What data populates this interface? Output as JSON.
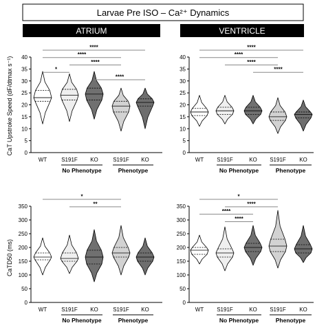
{
  "title": "Larvae Pre ISO – Ca²⁺ Dynamics",
  "columns": [
    "ATRIUM",
    "VENTRICLE"
  ],
  "group_labels": [
    "No Phenotype",
    "Phenotype"
  ],
  "colors": {
    "WT": "#ffffff",
    "S191F_no": "#efefef",
    "KO_no": "#707070",
    "S191F_ph": "#d2d2d2",
    "KO_ph": "#6e6e6e",
    "header_bg": "#000000",
    "header_text": "#ffffff"
  },
  "row_labels": {
    "top": "CaT Upstroke Speed (dF/dtmax s⁻¹)",
    "bottom": "CaTD50 (ms)"
  },
  "chart_data": [
    {
      "type": "violin",
      "panel": "atrium-upstroke",
      "categories": [
        "WT",
        "S191F",
        "KO",
        "S191F",
        "KO"
      ],
      "groups": [
        "",
        "No Phenotype",
        "No Phenotype",
        "Phenotype",
        "Phenotype"
      ],
      "ylim": [
        0,
        40
      ],
      "yticks": [
        0,
        5,
        10,
        15,
        20,
        25,
        30,
        35,
        40
      ],
      "violins": [
        {
          "min": 12,
          "max": 34,
          "q1": 21.5,
          "median": 23,
          "q3": 26
        },
        {
          "min": 13,
          "max": 33,
          "q1": 22,
          "median": 24,
          "q3": 26.5
        },
        {
          "min": 14,
          "max": 34,
          "q1": 22,
          "median": 24.5,
          "q3": 27
        },
        {
          "min": 9,
          "max": 27,
          "q1": 17,
          "median": 19.5,
          "q3": 21.5
        },
        {
          "min": 10,
          "max": 27,
          "q1": 19.5,
          "median": 21,
          "q3": 22.5
        }
      ],
      "significance": [
        {
          "a": 0,
          "b": 4,
          "label": "****"
        },
        {
          "a": 0,
          "b": 3,
          "label": "****"
        },
        {
          "a": 1,
          "b": 3,
          "label": "****"
        },
        {
          "a": 0,
          "b": 1,
          "label": "*"
        },
        {
          "a": 2,
          "b": 4,
          "label": "****"
        }
      ]
    },
    {
      "type": "violin",
      "panel": "ventricle-upstroke",
      "categories": [
        "WT",
        "S191F",
        "KO",
        "S191F",
        "KO"
      ],
      "groups": [
        "",
        "No Phenotype",
        "No Phenotype",
        "Phenotype",
        "Phenotype"
      ],
      "ylim": [
        0,
        40
      ],
      "yticks": [
        0,
        5,
        10,
        15,
        20,
        25,
        30,
        35,
        40
      ],
      "violins": [
        {
          "min": 11,
          "max": 24,
          "q1": 15.5,
          "median": 17,
          "q3": 18.5
        },
        {
          "min": 12,
          "max": 24,
          "q1": 16,
          "median": 17.5,
          "q3": 19
        },
        {
          "min": 12,
          "max": 24,
          "q1": 16,
          "median": 17.5,
          "q3": 19
        },
        {
          "min": 8,
          "max": 23,
          "q1": 13.5,
          "median": 15,
          "q3": 17
        },
        {
          "min": 9,
          "max": 22,
          "q1": 14.5,
          "median": 16,
          "q3": 17
        }
      ],
      "significance": [
        {
          "a": 0,
          "b": 4,
          "label": "****"
        },
        {
          "a": 0,
          "b": 3,
          "label": "****"
        },
        {
          "a": 1,
          "b": 3,
          "label": "****"
        },
        {
          "a": 2,
          "b": 4,
          "label": "****"
        }
      ]
    },
    {
      "type": "violin",
      "panel": "atrium-catd50",
      "categories": [
        "WT",
        "S191F",
        "KO",
        "S191F",
        "KO"
      ],
      "groups": [
        "",
        "No Phenotype",
        "No Phenotype",
        "Phenotype",
        "Phenotype"
      ],
      "ylim": [
        0,
        350
      ],
      "yticks": [
        0,
        50,
        100,
        150,
        200,
        250,
        300,
        350
      ],
      "violins": [
        {
          "min": 100,
          "max": 235,
          "q1": 155,
          "median": 165,
          "q3": 180
        },
        {
          "min": 105,
          "max": 245,
          "q1": 150,
          "median": 160,
          "q3": 180
        },
        {
          "min": 75,
          "max": 265,
          "q1": 140,
          "median": 165,
          "q3": 190
        },
        {
          "min": 100,
          "max": 280,
          "q1": 165,
          "median": 180,
          "q3": 200
        },
        {
          "min": 100,
          "max": 235,
          "q1": 150,
          "median": 165,
          "q3": 180
        }
      ],
      "significance": [
        {
          "a": 0,
          "b": 3,
          "label": "*"
        },
        {
          "a": 1,
          "b": 3,
          "label": "**"
        }
      ]
    },
    {
      "type": "violin",
      "panel": "ventricle-catd50",
      "categories": [
        "WT",
        "S191F",
        "KO",
        "S191F",
        "KO"
      ],
      "groups": [
        "",
        "No Phenotype",
        "No Phenotype",
        "Phenotype",
        "Phenotype"
      ],
      "ylim": [
        0,
        350
      ],
      "yticks": [
        0,
        50,
        100,
        150,
        200,
        250,
        300,
        350
      ],
      "violins": [
        {
          "min": 140,
          "max": 245,
          "q1": 175,
          "median": 190,
          "q3": 200
        },
        {
          "min": 115,
          "max": 275,
          "q1": 165,
          "median": 180,
          "q3": 195
        },
        {
          "min": 135,
          "max": 280,
          "q1": 185,
          "median": 200,
          "q3": 215
        },
        {
          "min": 125,
          "max": 335,
          "q1": 185,
          "median": 205,
          "q3": 230
        },
        {
          "min": 145,
          "max": 280,
          "q1": 180,
          "median": 195,
          "q3": 210
        }
      ],
      "significance": [
        {
          "a": 0,
          "b": 3,
          "label": "*"
        },
        {
          "a": 1,
          "b": 3,
          "label": "****"
        },
        {
          "a": 0,
          "b": 2,
          "label": "****"
        },
        {
          "a": 1,
          "b": 2,
          "label": "****"
        }
      ]
    }
  ]
}
